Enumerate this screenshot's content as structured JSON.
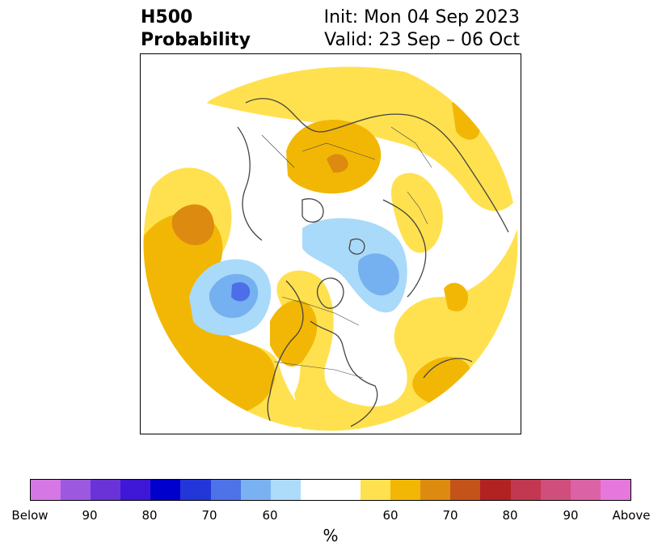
{
  "header": {
    "left_line1": "H500",
    "left_line2": "Probability",
    "right_line1": "Init: Mon 04 Sep 2023",
    "right_line2": "Valid: 23 Sep – 06 Oct"
  },
  "map": {
    "projection": "north-polar-stereographic",
    "shaded_fields": [
      {
        "name": "above-normal",
        "colors": [
          "#ffe14f",
          "#f2b705",
          "#dd8b10"
        ]
      },
      {
        "name": "below-normal",
        "colors": [
          "#aadaf9",
          "#75b0f0",
          "#4c6ee8"
        ]
      }
    ],
    "coastline_color": "#444444"
  },
  "colorbar": {
    "colors": [
      "#d677e6",
      "#9c59e0",
      "#6a33d8",
      "#3f17d6",
      "#0000cc",
      "#2337d8",
      "#4e73e8",
      "#7ab1f0",
      "#acdcf9",
      "#ffffff",
      "#ffe14f",
      "#f2b705",
      "#dd8b10",
      "#c4531a",
      "#b22222",
      "#c23850",
      "#cf4e7c",
      "#dc62a6",
      "#e677dc"
    ],
    "tick_labels": [
      "Below",
      "90",
      "80",
      "70",
      "60",
      "60",
      "70",
      "80",
      "90",
      "Above"
    ],
    "unit_label": "%"
  }
}
